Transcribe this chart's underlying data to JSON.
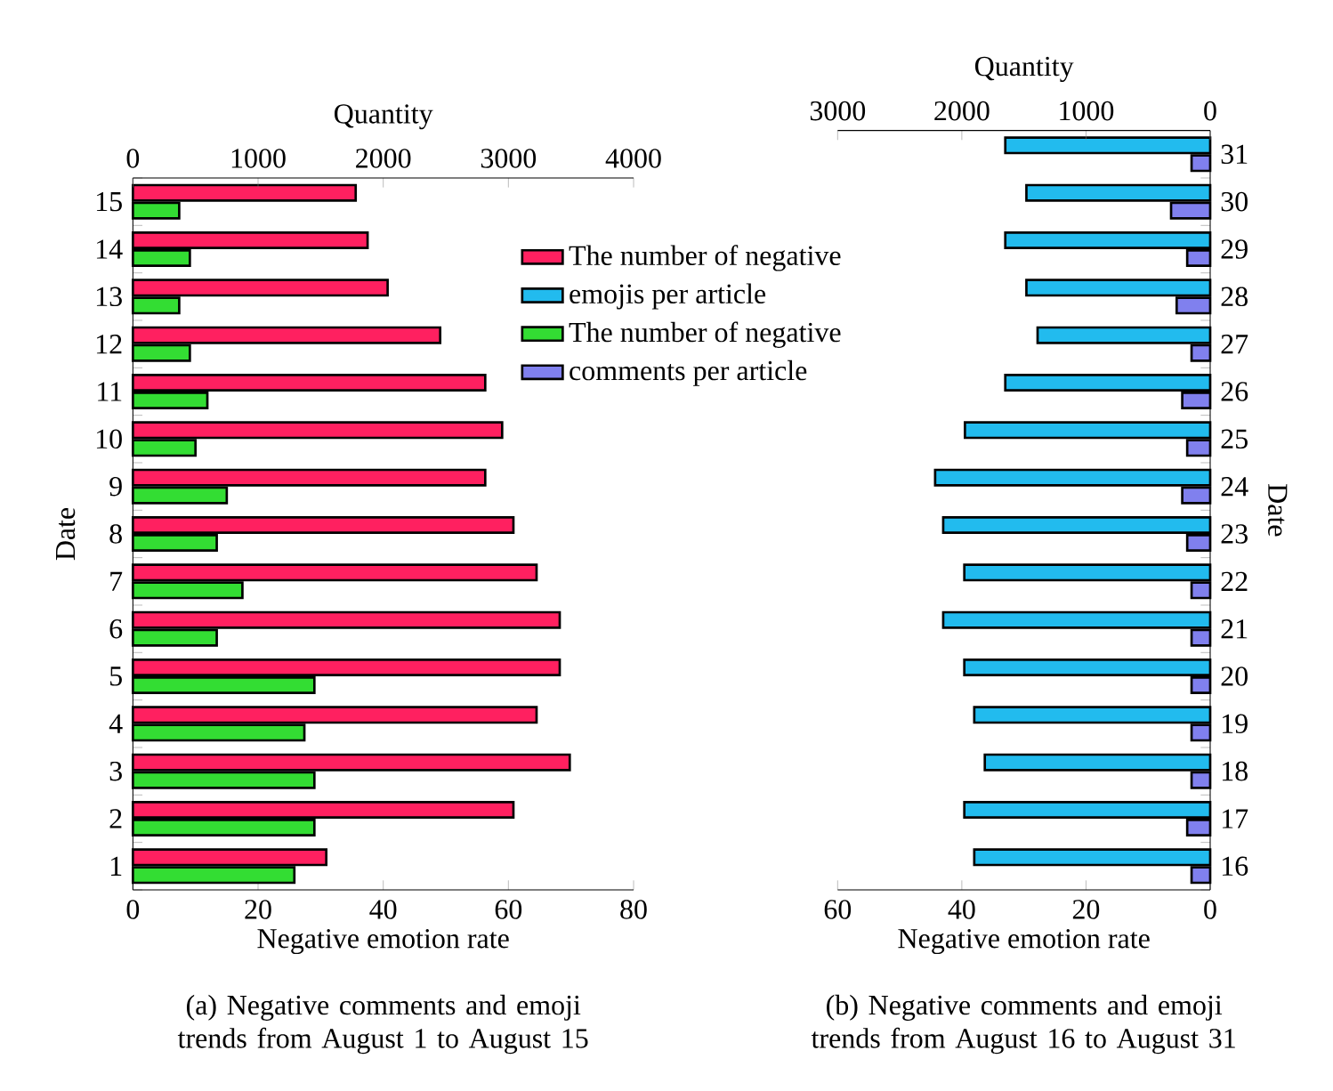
{
  "chart_data": [
    {
      "type": "bar",
      "orientation": "horizontal",
      "title": "(a)  Negative comments and emoji trends from August 1 to August 15",
      "xlabel": "Negative emotion rate",
      "x2label": "Quantity",
      "ylabel": "Date",
      "categories": [
        "15",
        "14",
        "13",
        "12",
        "11",
        "10",
        "9",
        "8",
        "7",
        "6",
        "5",
        "4",
        "3",
        "2",
        "1"
      ],
      "xlim": [
        0,
        80
      ],
      "xticks": [
        0,
        20,
        40,
        60,
        80
      ],
      "x2lim": [
        0,
        4000
      ],
      "x2ticks": [
        0,
        1000,
        2000,
        3000,
        4000
      ],
      "legend": "top right",
      "series": [
        {
          "name": "The number of negative",
          "color": "#ff2060",
          "values": [
            35.6,
            37.5,
            40.7,
            49.1,
            56.3,
            59,
            56.3,
            60.8,
            64.5,
            68.2,
            68.2,
            64.5,
            69.8,
            60.8,
            30.9
          ]
        },
        {
          "name": "The number of negative",
          "color": "#33dd33",
          "values": [
            7.4,
            9.1,
            7.4,
            9.1,
            11.9,
            10,
            15,
            13.4,
            17.5,
            13.4,
            29,
            27.4,
            29,
            29,
            25.8
          ]
        }
      ]
    },
    {
      "type": "bar",
      "orientation": "horizontal",
      "title": "(b)  Negative comments and emoji trends from August 16 to August 31",
      "xlabel": "Negative emotion rate",
      "x2label": "Quantity",
      "ylabel": "Date",
      "categories": [
        "31",
        "30",
        "29",
        "28",
        "27",
        "26",
        "25",
        "24",
        "23",
        "22",
        "21",
        "20",
        "19",
        "18",
        "17",
        "16"
      ],
      "xlim": [
        60,
        0
      ],
      "xticks": [
        60,
        40,
        20,
        0
      ],
      "x2lim": [
        3000,
        0
      ],
      "x2ticks": [
        3000,
        2000,
        1000,
        0
      ],
      "legend": "top left",
      "series": [
        {
          "name": "emojis per article",
          "color": "#22bbee",
          "values": [
            33,
            29.6,
            33,
            29.6,
            27.8,
            33,
            39.5,
            44.3,
            43,
            39.6,
            43,
            39.6,
            38,
            36.3,
            39.6,
            38
          ]
        },
        {
          "name": "comments per article",
          "color": "#8080ee",
          "values": [
            3,
            6.3,
            3.7,
            5.4,
            3,
            4.5,
            3.7,
            4.5,
            3.7,
            3,
            3,
            3,
            3,
            3,
            3.7,
            3
          ]
        }
      ]
    }
  ]
}
